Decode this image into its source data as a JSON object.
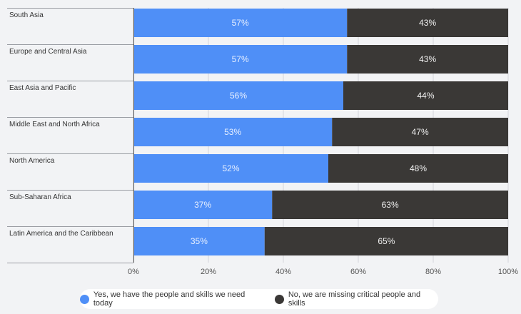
{
  "chart_data": {
    "type": "bar",
    "orientation": "horizontal",
    "stacked": true,
    "categories": [
      "South Asia",
      "Europe and Central Asia",
      "East Asia and Pacific",
      "Middle East and North Africa",
      "North America",
      "Sub-Saharan Africa",
      "Latin America and the Caribbean"
    ],
    "series": [
      {
        "name": "Yes, we have the people and skills we need today",
        "values": [
          57,
          57,
          56,
          53,
          52,
          37,
          35
        ],
        "color": "#4f8ff7"
      },
      {
        "name": "No, we are missing critical people and skills",
        "values": [
          43,
          43,
          44,
          47,
          48,
          63,
          65
        ],
        "color": "#3a3836"
      }
    ],
    "value_suffix": "%",
    "xlim": [
      0,
      100
    ],
    "xticks": [
      0,
      20,
      40,
      60,
      80,
      100
    ],
    "xtick_labels": [
      "0%",
      "20%",
      "40%",
      "60%",
      "80%",
      "100%"
    ],
    "grid": true,
    "legend_position": "bottom-center"
  }
}
